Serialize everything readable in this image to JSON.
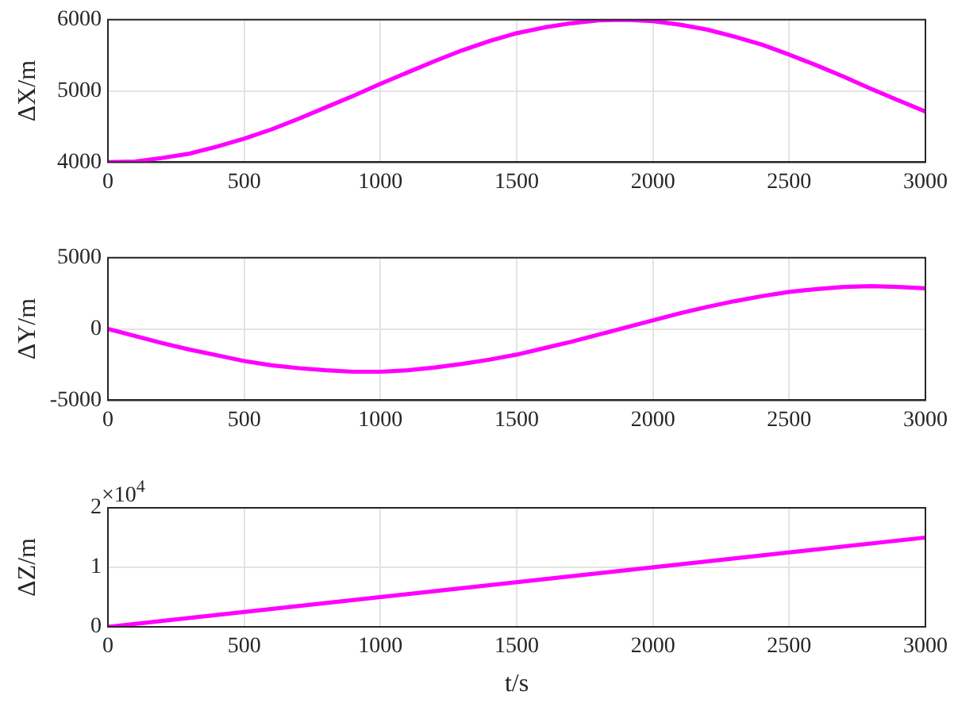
{
  "chart_data": [
    {
      "type": "line",
      "ylabel": "ΔX/m",
      "x": [
        0,
        100,
        200,
        300,
        400,
        500,
        600,
        700,
        800,
        900,
        1000,
        1100,
        1200,
        1300,
        1400,
        1500,
        1600,
        1700,
        1800,
        1900,
        2000,
        2100,
        2200,
        2300,
        2400,
        2500,
        2600,
        2700,
        2800,
        2900,
        3000
      ],
      "series": [
        {
          "color": "#ff00ff",
          "values": [
            4000,
            4010,
            4060,
            4120,
            4220,
            4330,
            4460,
            4610,
            4770,
            4930,
            5100,
            5260,
            5420,
            5570,
            5700,
            5810,
            5890,
            5950,
            5990,
            6000,
            5980,
            5930,
            5860,
            5760,
            5650,
            5510,
            5360,
            5200,
            5030,
            4870,
            4710
          ]
        }
      ],
      "xlim": [
        0,
        3000
      ],
      "xticks": [
        0,
        500,
        1000,
        1500,
        2000,
        2500,
        3000
      ],
      "ylim": [
        4000,
        6000
      ],
      "yticks": [
        4000,
        5000,
        6000
      ],
      "grid": true,
      "marker": "none"
    },
    {
      "type": "line",
      "ylabel": "ΔY/m",
      "x": [
        0,
        100,
        200,
        300,
        400,
        500,
        600,
        700,
        800,
        900,
        1000,
        1100,
        1200,
        1300,
        1400,
        1500,
        1600,
        1700,
        1800,
        1900,
        2000,
        2100,
        2200,
        2300,
        2400,
        2500,
        2600,
        2700,
        2800,
        2900,
        3000
      ],
      "series": [
        {
          "color": "#ff00ff",
          "values": [
            0,
            -500,
            -1000,
            -1450,
            -1850,
            -2250,
            -2550,
            -2750,
            -2900,
            -3000,
            -3000,
            -2900,
            -2700,
            -2450,
            -2150,
            -1800,
            -1350,
            -900,
            -400,
            100,
            600,
            1100,
            1550,
            1950,
            2300,
            2600,
            2800,
            2950,
            3000,
            2950,
            2850
          ]
        }
      ],
      "xlim": [
        0,
        3000
      ],
      "xticks": [
        0,
        500,
        1000,
        1500,
        2000,
        2500,
        3000
      ],
      "ylim": [
        -5000,
        5000
      ],
      "yticks": [
        -5000,
        0,
        5000
      ],
      "grid": true,
      "marker": "none"
    },
    {
      "type": "line",
      "xlabel": "t/s",
      "ylabel": "ΔZ/m",
      "annotations": [
        "×10$^{4}$"
      ],
      "x": [
        0,
        3000
      ],
      "series": [
        {
          "color": "#ff00ff",
          "values": [
            0,
            1.5
          ]
        }
      ],
      "xlim": [
        0,
        3000
      ],
      "xticks": [
        0,
        500,
        1000,
        1500,
        2000,
        2500,
        3000
      ],
      "ylim": [
        0,
        2
      ],
      "yticks": [
        0,
        1,
        2
      ],
      "grid": true,
      "marker": "none"
    }
  ]
}
